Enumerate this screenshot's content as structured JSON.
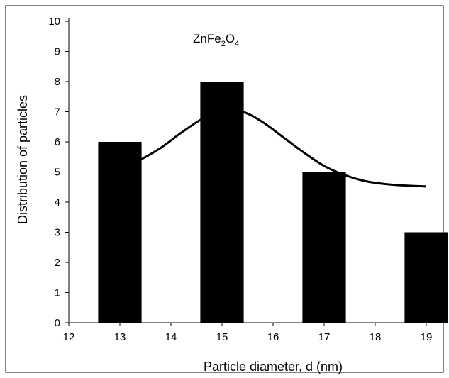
{
  "chart_data": {
    "type": "bar",
    "annotation": {
      "base": "ZnFe",
      "sub1": "2",
      "mid": "O",
      "sub2": "4"
    },
    "xlabel": "Particle diameter, d (nm)",
    "ylabel": "Distribution of particles",
    "xlim": [
      12,
      19.7
    ],
    "ylim": [
      0,
      10
    ],
    "xticks": [
      "12",
      "13",
      "14",
      "15",
      "16",
      "17",
      "18",
      "19"
    ],
    "yticks": [
      "0",
      "1",
      "2",
      "3",
      "4",
      "5",
      "6",
      "7",
      "8",
      "9",
      "10"
    ],
    "bars": [
      {
        "x": 13,
        "value": 6
      },
      {
        "x": 15,
        "value": 8
      },
      {
        "x": 17,
        "value": 5
      },
      {
        "x": 19,
        "value": 3
      }
    ],
    "bar_width": 0.85,
    "bar_color": "#000000",
    "fit_curve": {
      "x": [
        13.4,
        13.8,
        14.2,
        14.6,
        15.0,
        15.4,
        15.8,
        16.2,
        16.6,
        17.0,
        17.4,
        17.8,
        18.2,
        18.6,
        19.0
      ],
      "y": [
        5.4,
        5.8,
        6.3,
        6.75,
        7.05,
        7.0,
        6.65,
        6.15,
        5.65,
        5.2,
        4.9,
        4.7,
        4.6,
        4.55,
        4.52
      ]
    },
    "grid": false,
    "legend": "none"
  }
}
